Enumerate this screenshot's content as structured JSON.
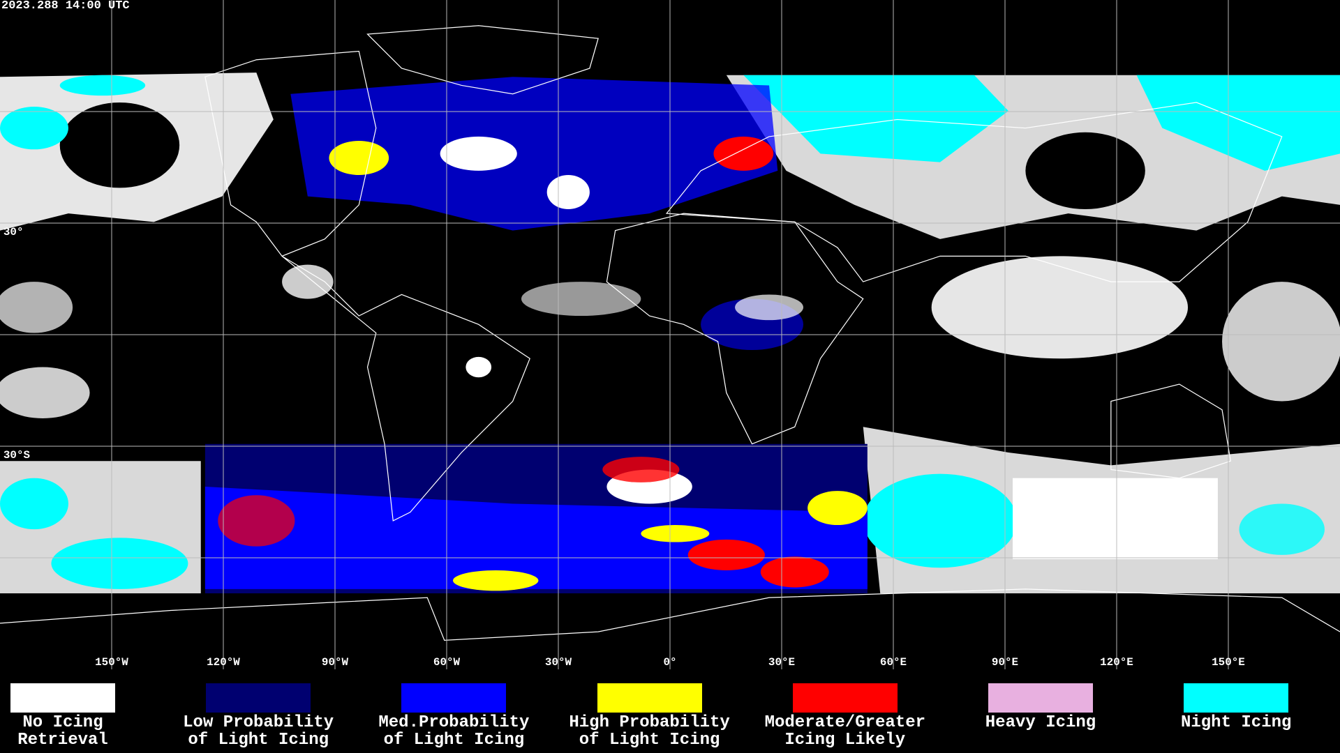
{
  "header": {
    "timestamp": "2023.288 14:00 UTC"
  },
  "map": {
    "lon_labels": [
      "150°W",
      "120°W",
      "90°W",
      "60°W",
      "30°W",
      "0°",
      "30°E",
      "60°E",
      "90°E",
      "120°E",
      "150°E"
    ],
    "lat_labels": [
      "30°",
      "30°S"
    ]
  },
  "legend": [
    {
      "lines": [
        "No Icing",
        "Retrieval"
      ],
      "color": "#ffffff"
    },
    {
      "lines": [
        "Low Probability",
        "of Light Icing"
      ],
      "color": "#000070"
    },
    {
      "lines": [
        "Med.Probability",
        "of Light Icing"
      ],
      "color": "#0000ff"
    },
    {
      "lines": [
        "High Probability",
        "of Light Icing"
      ],
      "color": "#ffff00"
    },
    {
      "lines": [
        "Moderate/Greater",
        "Icing Likely"
      ],
      "color": "#ff0000"
    },
    {
      "lines": [
        "Heavy Icing"
      ],
      "color": "#e8b0e0"
    },
    {
      "lines": [
        "Night Icing"
      ],
      "color": "#00ffff"
    }
  ]
}
